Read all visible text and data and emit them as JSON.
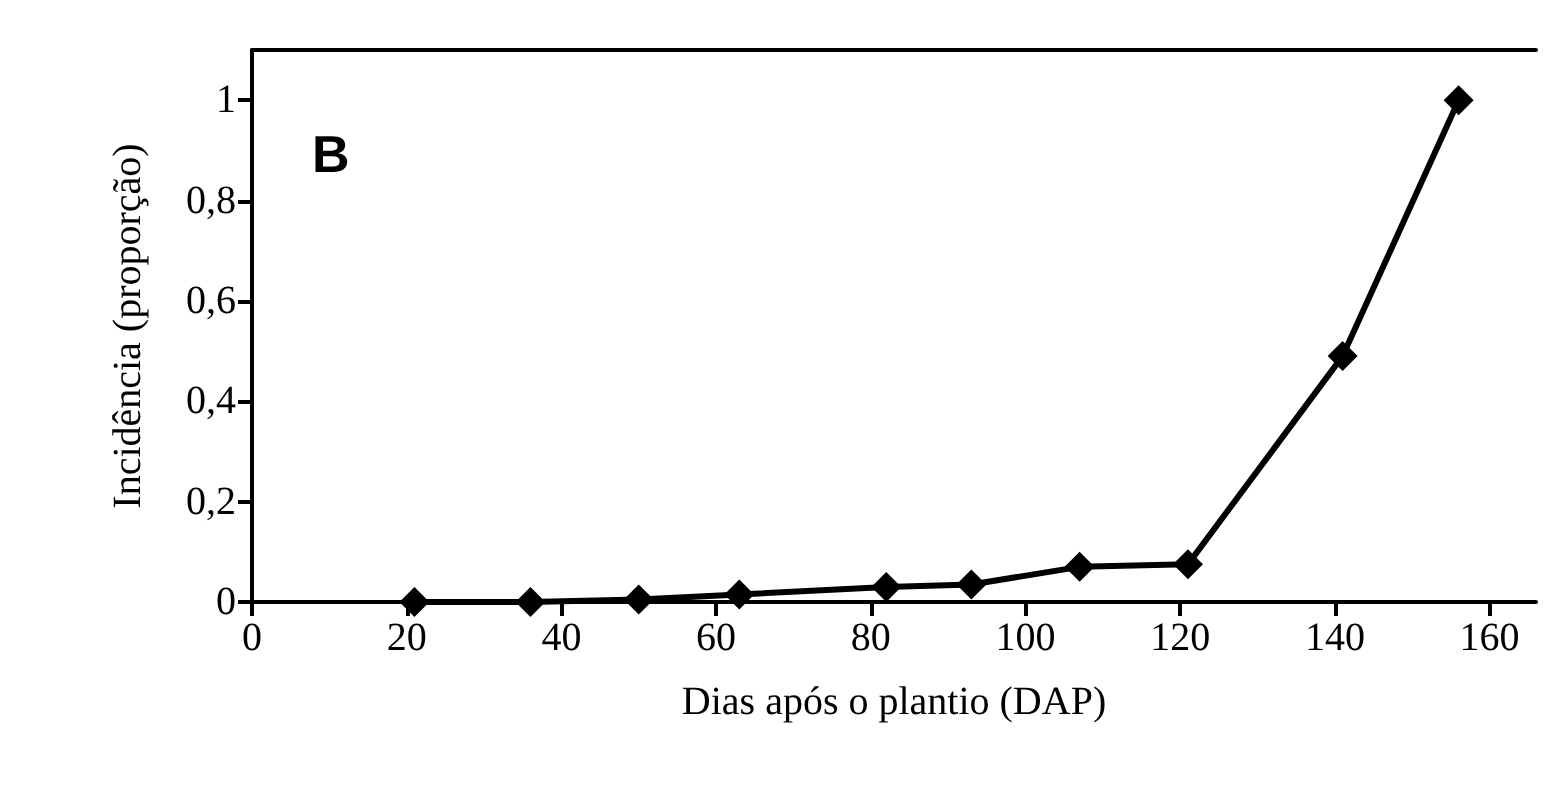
{
  "chart_data": {
    "type": "line",
    "xlabel": "Dias após o plantio (DAP)",
    "ylabel": "Incidência (proporção)",
    "annotations": [
      "B"
    ],
    "x": [
      21,
      36,
      50,
      63,
      82,
      93,
      107,
      121,
      141,
      156
    ],
    "series": [
      {
        "color": "#000000",
        "values": [
          0,
          0,
          0.005,
          0.015,
          0.03,
          0.035,
          0.07,
          0.075,
          0.49,
          1
        ]
      }
    ],
    "xlim": [
      0,
      166
    ],
    "xticks": [
      0,
      20,
      40,
      60,
      80,
      100,
      120,
      140,
      160
    ],
    "ylim": [
      0,
      1.1
    ],
    "yticks": [
      0,
      {
        "value": 0.2,
        "label": "0,2"
      },
      {
        "value": 0.4,
        "label": "0,4"
      },
      {
        "value": 0.6,
        "label": "0,6"
      },
      {
        "value": 0.8,
        "label": "0,8"
      },
      1
    ],
    "grid": false,
    "marker": "diamond",
    "line_style": "solid"
  }
}
